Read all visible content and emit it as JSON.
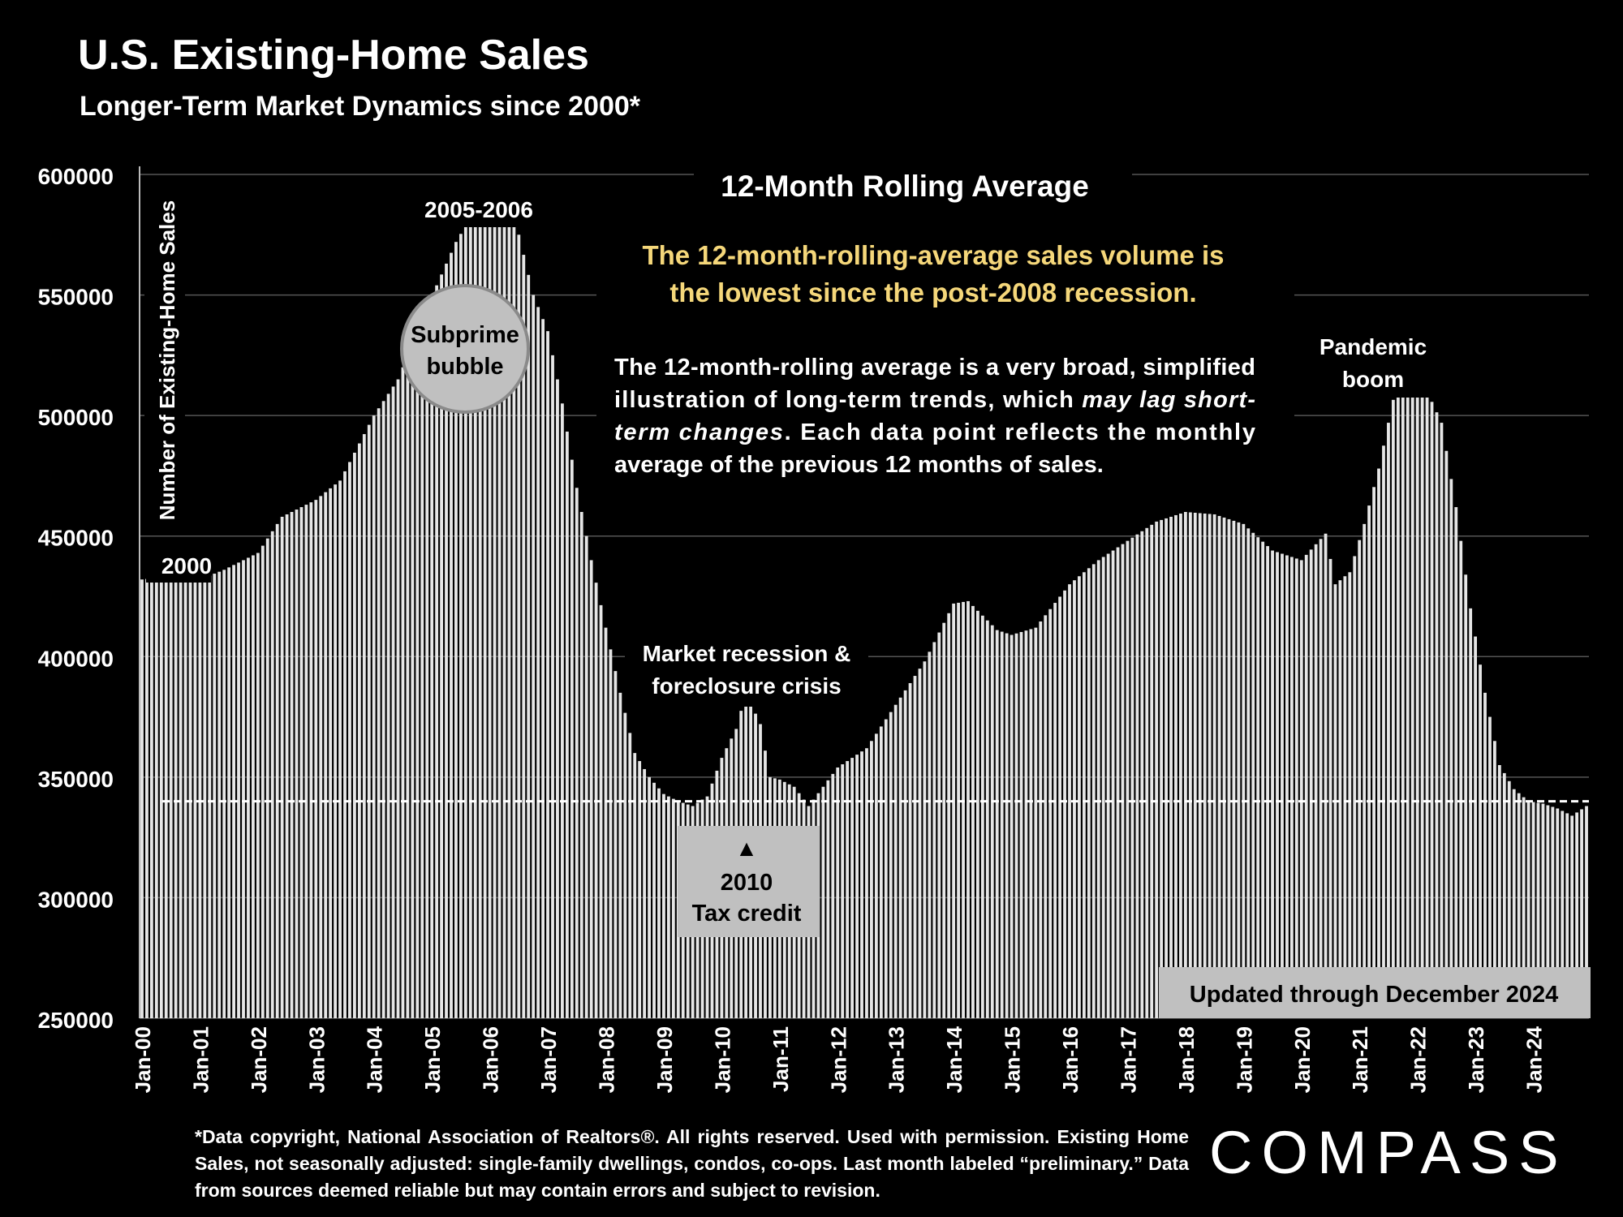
{
  "header": {
    "title": "U.S. Existing-Home Sales",
    "subtitle": "Longer-Term Market Dynamics since 2000*"
  },
  "footnote": "*Data copyright, National Association of Realtors®. All rights reserved. Used with permission. Existing Home Sales, not seasonally adjusted: single-family dwellings, condos, co-ops. Last month labeled “preliminary.” Data from sources deemed reliable but may contain errors and subject to revision.",
  "logo": {
    "text": "COMPASS"
  },
  "colors": {
    "background": "#000000",
    "bar": "#e6e6e6",
    "highlight": "#f5d77a",
    "callout_box": "#c0c0c0",
    "gridline": "#555555"
  },
  "chart_data": {
    "type": "bar",
    "title": "12-Month Rolling Average",
    "ylabel": "Number of Existing-Home Sales",
    "xlabel": "",
    "ylim": [
      250000,
      600000
    ],
    "yticks": [
      250000,
      300000,
      350000,
      400000,
      450000,
      500000,
      550000,
      600000
    ],
    "xtick_labels": [
      "Jan-00",
      "Jan-01",
      "Jan-02",
      "Jan-03",
      "Jan-04",
      "Jan-05",
      "Jan-06",
      "Jan-07",
      "Jan-08",
      "Jan-09",
      "Jan-10",
      "Jan-11",
      "Jan-12",
      "Jan-13",
      "Jan-14",
      "Jan-15",
      "Jan-16",
      "Jan-17",
      "Jan-18",
      "Jan-19",
      "Jan-20",
      "Jan-21",
      "Jan-22",
      "Jan-23",
      "Jan-24"
    ],
    "x_start": "Jan-00",
    "x_end": "Dec-24",
    "anchor_values": [
      [
        "Jan-00",
        432000
      ],
      [
        "Jun-00",
        433000
      ],
      [
        "Jan-01",
        432000
      ],
      [
        "Jun-01",
        436000
      ],
      [
        "Jan-02",
        443000
      ],
      [
        "Jun-02",
        458000
      ],
      [
        "Jan-03",
        465000
      ],
      [
        "Jun-03",
        473000
      ],
      [
        "Jan-04",
        500000
      ],
      [
        "Jun-04",
        515000
      ],
      [
        "Dec-04",
        545000
      ],
      [
        "Jun-05",
        572000
      ],
      [
        "Sep-05",
        582000
      ],
      [
        "Dec-05",
        591000
      ],
      [
        "Apr-06",
        589000
      ],
      [
        "Jul-06",
        575000
      ],
      [
        "Oct-06",
        550000
      ],
      [
        "Jan-07",
        535000
      ],
      [
        "Apr-07",
        505000
      ],
      [
        "Jul-07",
        470000
      ],
      [
        "Oct-07",
        440000
      ],
      [
        "Jan-08",
        412000
      ],
      [
        "Apr-08",
        385000
      ],
      [
        "Jul-08",
        360000
      ],
      [
        "Oct-08",
        350000
      ],
      [
        "Jan-09",
        343000
      ],
      [
        "Apr-09",
        340000
      ],
      [
        "Jul-09",
        338000
      ],
      [
        "Oct-09",
        342000
      ],
      [
        "Jan-10",
        358000
      ],
      [
        "Apr-10",
        370000
      ],
      [
        "Jun-10",
        385000
      ],
      [
        "Sep-10",
        372000
      ],
      [
        "Nov-10",
        350000
      ],
      [
        "Jan-11",
        349000
      ],
      [
        "Apr-11",
        346000
      ],
      [
        "Jul-11",
        338000
      ],
      [
        "Oct-11",
        346000
      ],
      [
        "Jan-12",
        354000
      ],
      [
        "Jul-12",
        362000
      ],
      [
        "Jan-13",
        380000
      ],
      [
        "Jul-13",
        398000
      ],
      [
        "Jan-14",
        422000
      ],
      [
        "Apr-14",
        423000
      ],
      [
        "Oct-14",
        411000
      ],
      [
        "Jan-15",
        409000
      ],
      [
        "Jun-15",
        412000
      ],
      [
        "Jan-16",
        430000
      ],
      [
        "Jul-16",
        440000
      ],
      [
        "Jan-17",
        448000
      ],
      [
        "Jul-17",
        456000
      ],
      [
        "Jan-18",
        460000
      ],
      [
        "Jul-18",
        459000
      ],
      [
        "Jan-19",
        455000
      ],
      [
        "Jul-19",
        444000
      ],
      [
        "Jan-20",
        440000
      ],
      [
        "Jun-20",
        451000
      ],
      [
        "Aug-20",
        430000
      ],
      [
        "Nov-20",
        435000
      ],
      [
        "Feb-21",
        455000
      ],
      [
        "May-21",
        478000
      ],
      [
        "Sep-21",
        516000
      ],
      [
        "Dec-21",
        514000
      ],
      [
        "Mar-22",
        510000
      ],
      [
        "Jun-22",
        497000
      ],
      [
        "Sep-22",
        462000
      ],
      [
        "Dec-22",
        420000
      ],
      [
        "Mar-23",
        385000
      ],
      [
        "Jun-23",
        355000
      ],
      [
        "Sep-23",
        345000
      ],
      [
        "Dec-23",
        340000
      ],
      [
        "Mar-24",
        339000
      ],
      [
        "Jun-24",
        337000
      ],
      [
        "Sep-24",
        334000
      ],
      [
        "Dec-24",
        338000
      ]
    ],
    "reference_line": {
      "value": 340000,
      "style": "dashed"
    },
    "grid": "horizontal",
    "annotations": [
      {
        "text": "2000",
        "at": "Jan-00"
      },
      {
        "text": "2005-2006",
        "at": "Dec-05"
      },
      {
        "text": "Subprime bubble",
        "at": "Mar-05",
        "shape": "circle"
      },
      {
        "text": "Market recession & foreclosure crisis",
        "at": "Jun-10"
      },
      {
        "text": "2010 Tax credit",
        "at": "Jun-10",
        "shape": "box",
        "marker": "▲"
      },
      {
        "text": "Pandemic boom",
        "at": "Sep-21"
      },
      {
        "text": "Updated through December 2024",
        "position": "bottom-right",
        "shape": "box"
      }
    ],
    "highlight_text": "The 12-month-rolling-average sales volume is the lowest since the post-2008 recession.",
    "body_text": {
      "part1": "The 12-month-rolling average is a very broad, simplified illustration of long-term trends, which ",
      "emphasis": "may lag short-term changes",
      "part2": ". Each data point reflects the monthly average of the previous 12 months of sales."
    }
  }
}
